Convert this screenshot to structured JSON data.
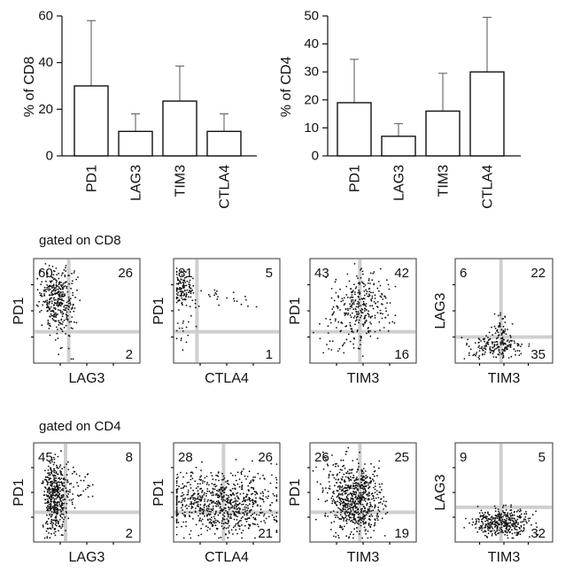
{
  "chart_data": [
    {
      "type": "bar",
      "id": "cd8-bars",
      "categories": [
        "PD1",
        "LAG3",
        "TIM3",
        "CTLA4"
      ],
      "values": [
        30,
        10.5,
        23.5,
        10.5
      ],
      "error_upper": [
        58,
        18,
        38.5,
        18
      ],
      "ylabel": "% of CD8",
      "ylim": [
        0,
        60
      ],
      "yticks": [
        "0",
        "20",
        "40",
        "60"
      ],
      "ytick_values": [
        0,
        20,
        40,
        60
      ]
    },
    {
      "type": "bar",
      "id": "cd4-bars",
      "categories": [
        "PD1",
        "LAG3",
        "TIM3",
        "CTLA4"
      ],
      "values": [
        19,
        7,
        16,
        30
      ],
      "error_upper": [
        34.5,
        11.5,
        29.5,
        49.5
      ],
      "ylabel": "% of CD4",
      "ylim": [
        0,
        50
      ],
      "yticks": [
        "0",
        "10",
        "20",
        "30",
        "40",
        "50"
      ],
      "ytick_values": [
        0,
        10,
        20,
        30,
        40,
        50
      ]
    },
    {
      "type": "scatter",
      "section": "gated on CD8",
      "panels": [
        {
          "xlabel": "LAG3",
          "ylabel": "PD1",
          "quadrants": {
            "ul": "60",
            "ur": "26",
            "lr": "2"
          },
          "gate": {
            "x": 0.33,
            "y": 0.3
          }
        },
        {
          "xlabel": "CTLA4",
          "ylabel": "PD1",
          "quadrants": {
            "ul": "81",
            "ur": "5",
            "lr": "1"
          },
          "gate": {
            "x": 0.22,
            "y": 0.3
          }
        },
        {
          "xlabel": "TIM3",
          "ylabel": "PD1",
          "quadrants": {
            "ul": "43",
            "ur": "42",
            "lr": "16"
          },
          "gate": {
            "x": 0.47,
            "y": 0.3
          }
        },
        {
          "xlabel": "TIM3",
          "ylabel": "LAG3",
          "quadrants": {
            "ul": "6",
            "ur": "22",
            "lr": "35"
          },
          "gate": {
            "x": 0.47,
            "y": 0.25
          }
        }
      ]
    },
    {
      "type": "scatter",
      "section": "gated on CD4",
      "panels": [
        {
          "xlabel": "LAG3",
          "ylabel": "PD1",
          "quadrants": {
            "ul": "45",
            "ur": "8",
            "lr": "2"
          },
          "gate": {
            "x": 0.3,
            "y": 0.3
          }
        },
        {
          "xlabel": "CTLA4",
          "ylabel": "PD1",
          "quadrants": {
            "ul": "28",
            "ur": "26",
            "lr": "21"
          },
          "gate": {
            "x": 0.47,
            "y": 0.3
          }
        },
        {
          "xlabel": "TIM3",
          "ylabel": "PD1",
          "quadrants": {
            "ul": "26",
            "ur": "25",
            "lr": "19"
          },
          "gate": {
            "x": 0.47,
            "y": 0.3
          }
        },
        {
          "xlabel": "TIM3",
          "ylabel": "LAG3",
          "quadrants": {
            "ul": "9",
            "ur": "5",
            "lr": "32"
          },
          "gate": {
            "x": 0.47,
            "y": 0.35
          }
        }
      ]
    }
  ]
}
